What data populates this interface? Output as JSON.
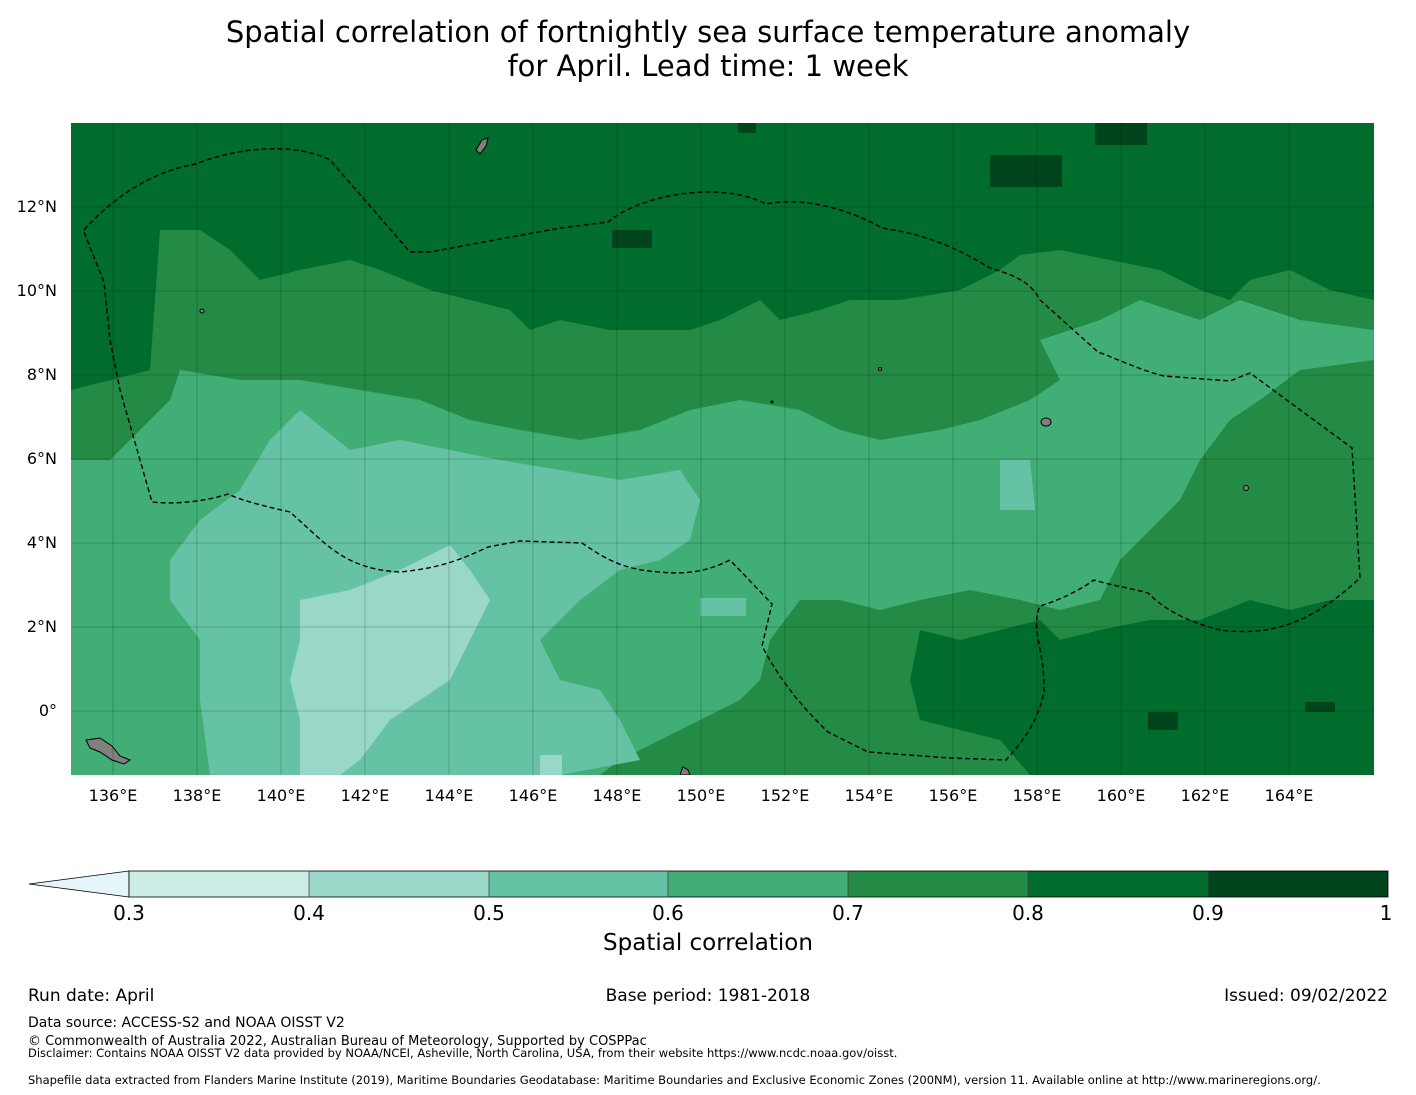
{
  "title_line1": "Spatial correlation of fortnightly sea surface temperature anomaly",
  "title_line2": "for April. Lead time: 1 week",
  "map": {
    "lon_range": [
      135,
      166
    ],
    "lat_range": [
      -1.5,
      14
    ],
    "lon_ticks": [
      "136°E",
      "138°E",
      "140°E",
      "142°E",
      "144°E",
      "146°E",
      "148°E",
      "150°E",
      "152°E",
      "154°E",
      "156°E",
      "158°E",
      "160°E",
      "162°E",
      "164°E"
    ],
    "lat_ticks": [
      "12°N",
      "10°N",
      "8°N",
      "6°N",
      "4°N",
      "2°N",
      "0°"
    ],
    "grid": true
  },
  "colorbar": {
    "title": "Spatial correlation",
    "ticks": [
      "0.3",
      "0.4",
      "0.5",
      "0.6",
      "0.7",
      "0.8",
      "0.9",
      "1"
    ],
    "under_color": "#e5f5f9",
    "colors": [
      "#ccece6",
      "#99d8c9",
      "#66c2a4",
      "#41ae76",
      "#238b45",
      "#006d2c",
      "#00441b"
    ],
    "land_color": "#808080"
  },
  "footer": {
    "run_date": "Run date: April",
    "base_period": "Base period: 1981-2018",
    "issued": "Issued: 09/02/2022",
    "data_source": "Data source: ACCESS-S2 and NOAA OISST V2",
    "copyright": "© Commonwealth of Australia 2022, Australian Bureau of Meteorology, Supported by COSPPac",
    "disclaimer": "Disclaimer: Contains NOAA OISST V2 data provided by NOAA/NCEI, Asheville, North Carolina, USA, from their website https://www.ncdc.noaa.gov/oisst.",
    "shapefile": "Shapefile data extracted from Flanders Marine Institute (2019), Maritime Boundaries Geodatabase: Maritime Boundaries and Exclusive Economic Zones (200NM), version 11. Available online at http://www.marineregions.org/."
  }
}
